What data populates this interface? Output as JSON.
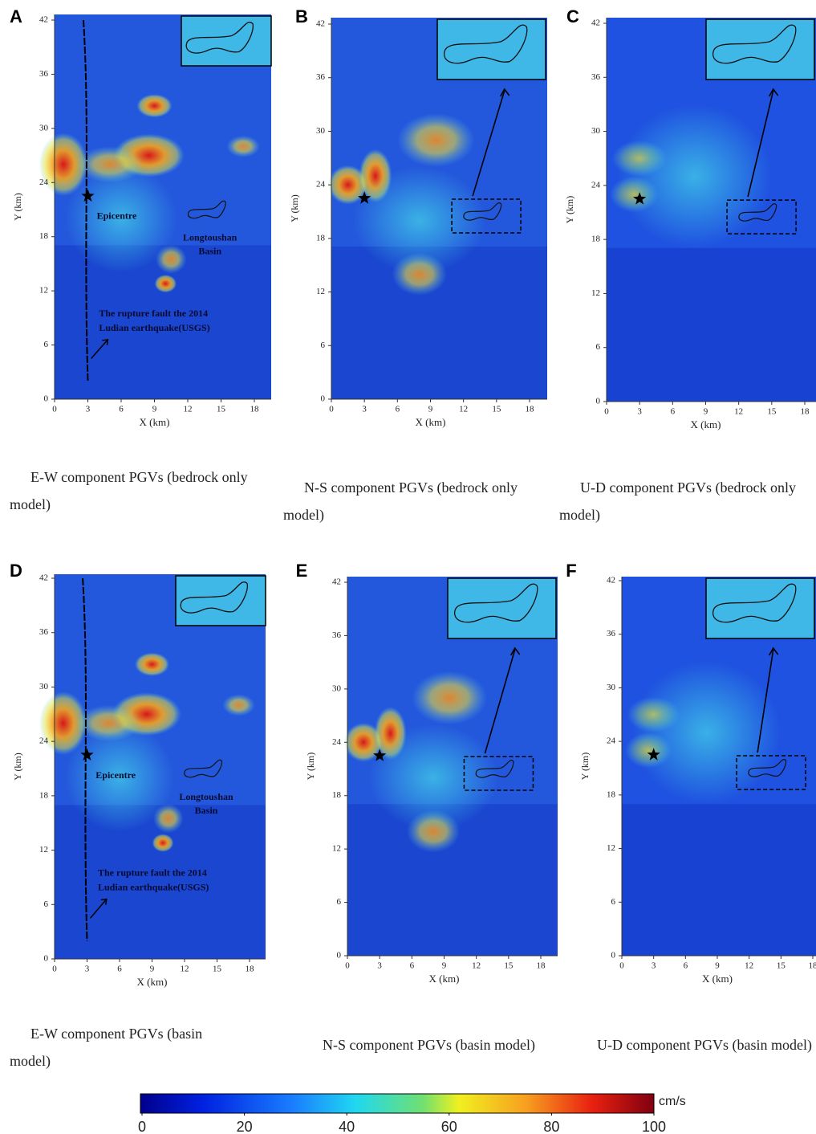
{
  "panels": [
    {
      "letter": "A",
      "caption": "E-W component PGVs (bedrock only model)",
      "ylabel": "Y (km)",
      "xlabel": "X (km)",
      "yticks": [
        0,
        6,
        12,
        18,
        24,
        30,
        36,
        42
      ],
      "xticks": [
        0,
        3,
        6,
        9,
        12,
        15,
        18
      ],
      "annotations": {
        "epicentre": "Epicentre",
        "basin": [
          "Longtoushan",
          "Basin"
        ],
        "fault": [
          "The rupture fault the 2014",
          "Ludian earthquake(USGS)"
        ]
      }
    },
    {
      "letter": "B",
      "caption": "N-S component PGVs (bedrock only model)",
      "ylabel": "Y (km)",
      "xlabel": "X (km)",
      "yticks": [
        0,
        6,
        12,
        18,
        24,
        30,
        36,
        42
      ],
      "xticks": [
        0,
        3,
        6,
        9,
        12,
        15,
        18
      ]
    },
    {
      "letter": "C",
      "caption": "U-D component PGVs (bedrock only model)",
      "ylabel": "Y (km)",
      "xlabel": "X (km)",
      "yticks": [
        0,
        6,
        12,
        18,
        24,
        30,
        36,
        42
      ],
      "xticks": [
        0,
        3,
        6,
        9,
        12,
        15,
        18
      ]
    },
    {
      "letter": "D",
      "caption": "E-W component PGVs (basin model)",
      "ylabel": "Y (km)",
      "xlabel": "X (km)",
      "yticks": [
        0,
        6,
        12,
        18,
        24,
        30,
        36,
        42
      ],
      "xticks": [
        0,
        3,
        6,
        9,
        12,
        15,
        18
      ],
      "annotations": {
        "epicentre": "Epicentre",
        "basin": [
          "Longtoushan",
          "Basin"
        ],
        "fault": [
          "The rupture fault the 2014",
          "Ludian earthquake(USGS)"
        ]
      }
    },
    {
      "letter": "E",
      "caption": "N-S component PGVs (basin model)",
      "ylabel": "Y (km)",
      "xlabel": "X (km)",
      "yticks": [
        0,
        6,
        12,
        18,
        24,
        30,
        36,
        42
      ],
      "xticks": [
        0,
        3,
        6,
        9,
        12,
        15,
        18
      ]
    },
    {
      "letter": "F",
      "caption": "U-D component PGVs (basin model)",
      "ylabel": "Y (km)",
      "xlabel": "X (km)",
      "yticks": [
        0,
        6,
        12,
        18,
        24,
        30,
        36,
        42
      ],
      "xticks": [
        0,
        3,
        6,
        9,
        12,
        15,
        18
      ]
    }
  ],
  "colorbar": {
    "unit": "cm/s",
    "ticks": [
      0,
      20,
      40,
      60,
      80,
      100
    ]
  }
}
